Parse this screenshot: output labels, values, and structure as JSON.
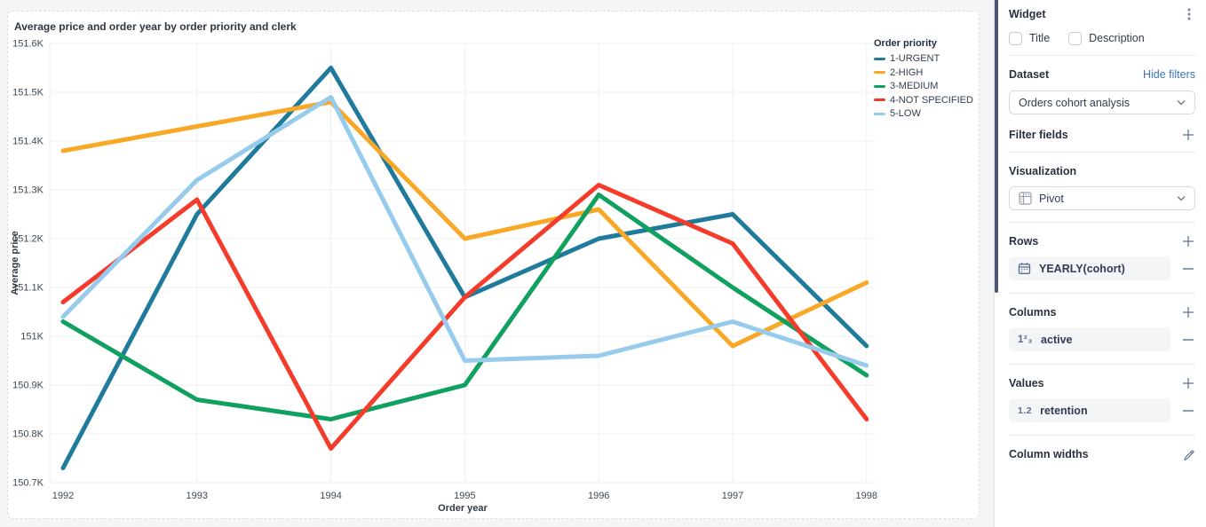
{
  "chart_data": {
    "type": "line",
    "title": "Average price and order year by order priority and clerk",
    "xlabel": "Order year",
    "ylabel": "Average price",
    "x": [
      1992,
      1993,
      1994,
      1995,
      1996,
      1997,
      1998
    ],
    "units": "K (thousands)",
    "ylim": [
      150.7,
      151.6
    ],
    "grid": true,
    "legend_title": "Order priority",
    "legend_position": "right",
    "yticks": [
      {
        "v": 151.6,
        "label": "151.6K"
      },
      {
        "v": 151.5,
        "label": "151.5K"
      },
      {
        "v": 151.4,
        "label": "151.4K"
      },
      {
        "v": 151.3,
        "label": "151.3K"
      },
      {
        "v": 151.2,
        "label": "151.2K"
      },
      {
        "v": 151.1,
        "label": "151.1K"
      },
      {
        "v": 151.0,
        "label": "151K"
      },
      {
        "v": 150.9,
        "label": "150.9K"
      },
      {
        "v": 150.8,
        "label": "150.8K"
      },
      {
        "v": 150.7,
        "label": "150.7K"
      }
    ],
    "series": [
      {
        "name": "1-URGENT",
        "color": "#1f7a9c",
        "values": [
          150.73,
          151.25,
          151.55,
          151.08,
          151.2,
          151.25,
          150.98
        ]
      },
      {
        "name": "2-HIGH",
        "color": "#f9a726",
        "values": [
          151.38,
          151.43,
          151.48,
          151.2,
          151.26,
          150.98,
          151.11
        ]
      },
      {
        "name": "3-MEDIUM",
        "color": "#10a05f",
        "values": [
          151.03,
          150.87,
          150.83,
          150.9,
          151.29,
          151.1,
          150.92
        ]
      },
      {
        "name": "4-NOT SPECIFIED",
        "color": "#f53b2a",
        "values": [
          151.07,
          151.28,
          150.77,
          151.08,
          151.31,
          151.19,
          150.83
        ]
      },
      {
        "name": "5-LOW",
        "color": "#96cbec",
        "values": [
          151.04,
          151.32,
          151.49,
          150.95,
          150.96,
          151.03,
          150.94
        ]
      }
    ]
  },
  "sidebar": {
    "title": "Widget",
    "checkboxes": [
      {
        "label": "Title",
        "checked": false
      },
      {
        "label": "Description",
        "checked": false
      }
    ],
    "dataset": {
      "label": "Dataset",
      "link": "Hide filters",
      "selected": "Orders cohort analysis"
    },
    "filter_fields": {
      "label": "Filter fields"
    },
    "visualization": {
      "label": "Visualization",
      "selected": "Pivot"
    },
    "rows": {
      "label": "Rows",
      "items": [
        {
          "label": "YEARLY(cohort)",
          "icon": "calendar-icon"
        }
      ]
    },
    "columns": {
      "label": "Columns",
      "items": [
        {
          "label": "active",
          "icon": "number-icon",
          "glyph": "1²₃"
        }
      ]
    },
    "values": {
      "label": "Values",
      "items": [
        {
          "label": "retention",
          "icon": "decimal-icon",
          "glyph": "1.2"
        }
      ]
    },
    "column_widths": {
      "label": "Column widths"
    },
    "colors": {
      "link_blue": "#3b74c4",
      "scrollbar": "#4c5773",
      "icon_slate": "#5f7291",
      "pill_bg": "#f4f5f7"
    }
  }
}
